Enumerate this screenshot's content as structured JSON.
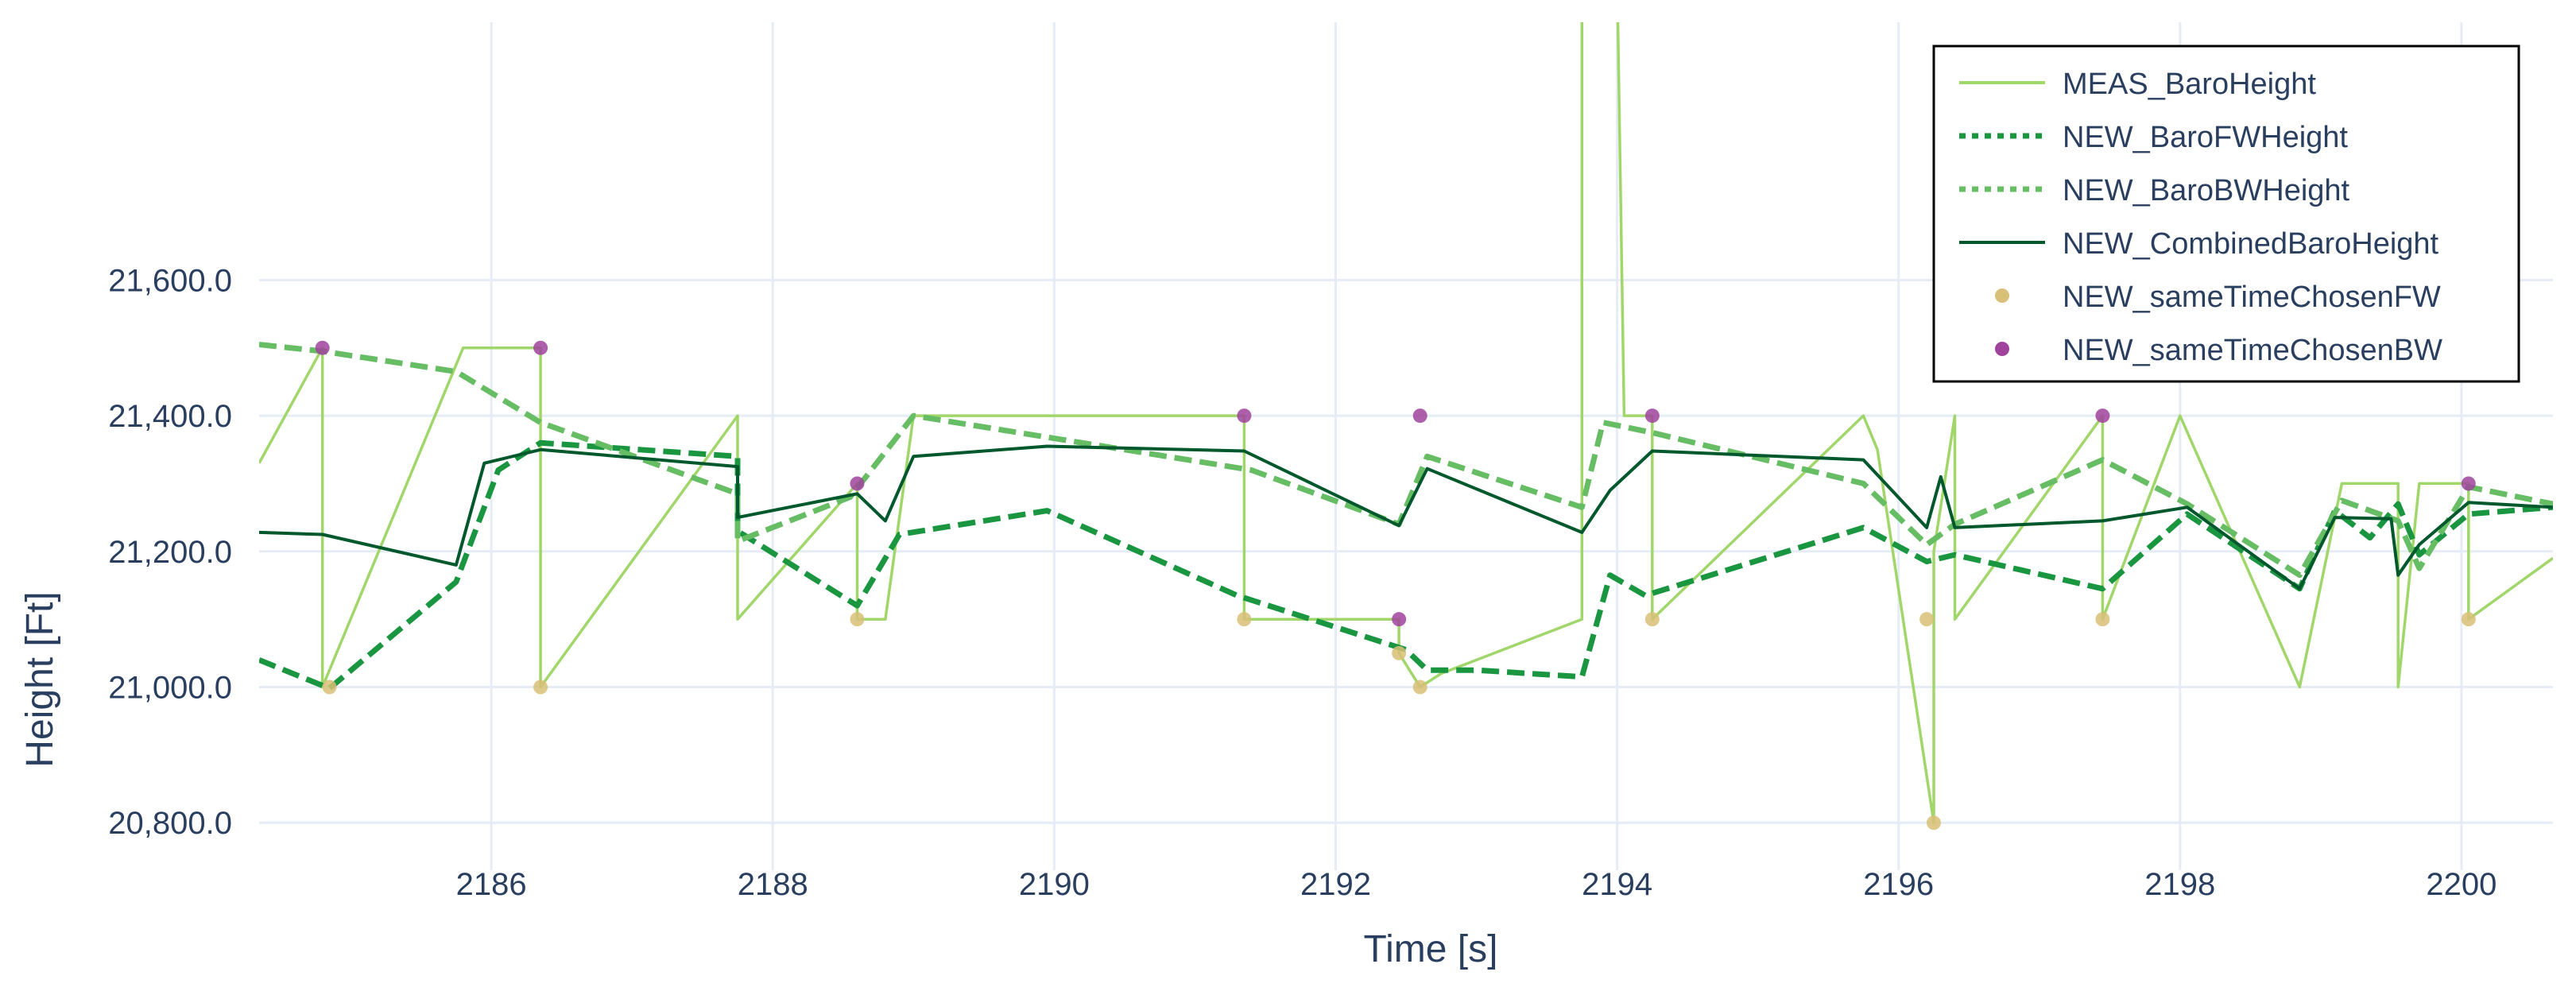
{
  "chart_data": {
    "type": "line",
    "xlabel": "Time [s]",
    "ylabel": "Height [Ft]",
    "xlim": [
      2184.35,
      2200.65
    ],
    "ylim": [
      20730,
      21980
    ],
    "x_ticks": [
      2186,
      2188,
      2190,
      2192,
      2194,
      2196,
      2198,
      2200
    ],
    "x_tick_labels": [
      "2186",
      "2188",
      "2190",
      "2192",
      "2194",
      "2196",
      "2198",
      "2200"
    ],
    "y_ticks": [
      20800,
      21000,
      21200,
      21400,
      21600
    ],
    "y_tick_labels": [
      "20,800.0",
      "21,000.0",
      "21,200.0",
      "21,400.0",
      "21,600.0"
    ],
    "grid": true,
    "legend_position": "top-right",
    "series": [
      {
        "name": "MEAS_BaroHeight",
        "style": "solid",
        "color": "#a1d76a",
        "points": [
          [
            2184.35,
            21330
          ],
          [
            2184.8,
            21500
          ],
          [
            2184.8,
            21000
          ],
          [
            2185.8,
            21500
          ],
          [
            2186.35,
            21500
          ],
          [
            2186.35,
            21000
          ],
          [
            2187.75,
            21400
          ],
          [
            2187.75,
            21100
          ],
          [
            2188.6,
            21300
          ],
          [
            2188.6,
            21100
          ],
          [
            2188.8,
            21100
          ],
          [
            2189.0,
            21400
          ],
          [
            2191.35,
            21400
          ],
          [
            2191.35,
            21100
          ],
          [
            2192.45,
            21100
          ],
          [
            2192.45,
            21050
          ],
          [
            2192.6,
            21000
          ],
          [
            2192.6,
            21000
          ],
          [
            2192.75,
            21020
          ],
          [
            2193.75,
            21100
          ],
          [
            2193.75,
            22050
          ],
          [
            2194.0,
            22050
          ],
          [
            2194.05,
            21400
          ],
          [
            2194.25,
            21400
          ],
          [
            2194.25,
            21100
          ],
          [
            2195.75,
            21400
          ],
          [
            2195.85,
            21350
          ],
          [
            2196.25,
            20800
          ],
          [
            2196.25,
            21200
          ],
          [
            2196.4,
            21400
          ],
          [
            2196.4,
            21100
          ],
          [
            2197.45,
            21400
          ],
          [
            2197.45,
            21100
          ],
          [
            2198.0,
            21400
          ],
          [
            2198.85,
            21000
          ],
          [
            2199.15,
            21300
          ],
          [
            2199.55,
            21300
          ],
          [
            2199.55,
            21000
          ],
          [
            2199.7,
            21300
          ],
          [
            2200.05,
            21300
          ],
          [
            2200.05,
            21100
          ],
          [
            2200.65,
            21190
          ]
        ]
      },
      {
        "name": "NEW_BaroFWHeight",
        "style": "dotted",
        "color": "#1a9641",
        "points": [
          [
            2184.35,
            21040
          ],
          [
            2184.85,
            20998
          ],
          [
            2185.75,
            21155
          ],
          [
            2186.05,
            21320
          ],
          [
            2186.35,
            21360
          ],
          [
            2187.75,
            21340
          ],
          [
            2187.75,
            21230
          ],
          [
            2188.6,
            21120
          ],
          [
            2188.9,
            21225
          ],
          [
            2189.95,
            21260
          ],
          [
            2191.3,
            21135
          ],
          [
            2192.5,
            21055
          ],
          [
            2192.65,
            21025
          ],
          [
            2193.0,
            21025
          ],
          [
            2193.75,
            21015
          ],
          [
            2193.95,
            21165
          ],
          [
            2194.2,
            21135
          ],
          [
            2195.75,
            21235
          ],
          [
            2196.2,
            21185
          ],
          [
            2196.4,
            21195
          ],
          [
            2197.45,
            21145
          ],
          [
            2198.05,
            21255
          ],
          [
            2198.85,
            21145
          ],
          [
            2199.1,
            21260
          ],
          [
            2199.35,
            21220
          ],
          [
            2199.55,
            21270
          ],
          [
            2199.7,
            21195
          ],
          [
            2200.05,
            21255
          ],
          [
            2200.65,
            21265
          ]
        ]
      },
      {
        "name": "NEW_BaroBWHeight",
        "style": "dotted",
        "color": "#66bd63",
        "points": [
          [
            2184.35,
            21505
          ],
          [
            2184.8,
            21495
          ],
          [
            2185.75,
            21465
          ],
          [
            2186.35,
            21390
          ],
          [
            2187.75,
            21285
          ],
          [
            2187.75,
            21215
          ],
          [
            2188.55,
            21280
          ],
          [
            2189.0,
            21400
          ],
          [
            2191.4,
            21320
          ],
          [
            2192.45,
            21240
          ],
          [
            2192.65,
            21340
          ],
          [
            2193.75,
            21265
          ],
          [
            2193.9,
            21390
          ],
          [
            2194.25,
            21375
          ],
          [
            2195.75,
            21300
          ],
          [
            2196.2,
            21210
          ],
          [
            2196.4,
            21240
          ],
          [
            2197.45,
            21335
          ],
          [
            2198.05,
            21270
          ],
          [
            2198.85,
            21165
          ],
          [
            2199.15,
            21275
          ],
          [
            2199.55,
            21245
          ],
          [
            2199.7,
            21175
          ],
          [
            2200.05,
            21295
          ],
          [
            2200.65,
            21270
          ]
        ]
      },
      {
        "name": "NEW_CombinedBaroHeight",
        "style": "solid",
        "color": "#00582c",
        "points": [
          [
            2184.35,
            21228
          ],
          [
            2184.8,
            21225
          ],
          [
            2185.75,
            21180
          ],
          [
            2185.95,
            21330
          ],
          [
            2186.35,
            21350
          ],
          [
            2187.75,
            21325
          ],
          [
            2187.75,
            21250
          ],
          [
            2188.6,
            21285
          ],
          [
            2188.8,
            21245
          ],
          [
            2189.0,
            21340
          ],
          [
            2189.95,
            21355
          ],
          [
            2191.35,
            21348
          ],
          [
            2192.45,
            21238
          ],
          [
            2192.65,
            21322
          ],
          [
            2193.75,
            21228
          ],
          [
            2193.95,
            21290
          ],
          [
            2194.25,
            21348
          ],
          [
            2195.75,
            21335
          ],
          [
            2196.2,
            21235
          ],
          [
            2196.3,
            21310
          ],
          [
            2196.4,
            21235
          ],
          [
            2197.45,
            21245
          ],
          [
            2198.05,
            21265
          ],
          [
            2198.85,
            21145
          ],
          [
            2199.1,
            21250
          ],
          [
            2199.5,
            21248
          ],
          [
            2199.55,
            21165
          ],
          [
            2199.7,
            21210
          ],
          [
            2200.05,
            21272
          ],
          [
            2200.65,
            21265
          ]
        ]
      },
      {
        "name": "NEW_sameTimeChosenFW",
        "style": "markers",
        "color": "#d8c077",
        "points": [
          [
            2184.85,
            21000
          ],
          [
            2186.35,
            21000
          ],
          [
            2188.6,
            21100
          ],
          [
            2191.35,
            21100
          ],
          [
            2192.45,
            21050
          ],
          [
            2192.6,
            21000
          ],
          [
            2194.25,
            21100
          ],
          [
            2196.2,
            21100
          ],
          [
            2196.25,
            20800
          ],
          [
            2197.45,
            21100
          ],
          [
            2200.05,
            21100
          ]
        ]
      },
      {
        "name": "NEW_sameTimeChosenBW",
        "style": "markers",
        "color": "#a0439c",
        "points": [
          [
            2184.8,
            21500
          ],
          [
            2186.35,
            21500
          ],
          [
            2188.6,
            21300
          ],
          [
            2191.35,
            21400
          ],
          [
            2192.45,
            21100
          ],
          [
            2192.6,
            21400
          ],
          [
            2194.25,
            21400
          ],
          [
            2197.45,
            21400
          ],
          [
            2200.05,
            21300
          ]
        ]
      }
    ]
  }
}
